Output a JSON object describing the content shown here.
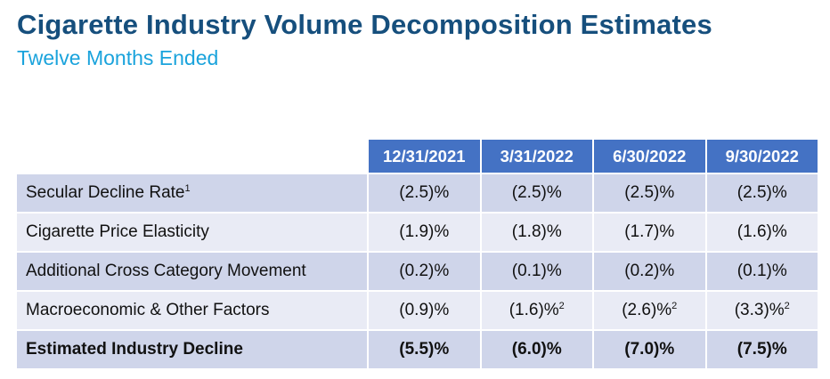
{
  "title": "Cigarette Industry Volume Decomposition Estimates",
  "subtitle": "Twelve Months Ended",
  "table": {
    "columns": [
      "12/31/2021",
      "3/31/2022",
      "6/30/2022",
      "9/30/2022"
    ],
    "rows": [
      {
        "label": "Secular Decline Rate",
        "label_footnote": "1",
        "values": [
          "(2.5)%",
          "(2.5)%",
          "(2.5)%",
          "(2.5)%"
        ],
        "footnotes": [
          "",
          "",
          "",
          ""
        ]
      },
      {
        "label": "Cigarette Price Elasticity",
        "label_footnote": "",
        "values": [
          "(1.9)%",
          "(1.8)%",
          "(1.7)%",
          "(1.6)%"
        ],
        "footnotes": [
          "",
          "",
          "",
          ""
        ]
      },
      {
        "label": "Additional Cross Category Movement",
        "label_footnote": "",
        "values": [
          "(0.2)%",
          "(0.1)%",
          "(0.2)%",
          "(0.1)%"
        ],
        "footnotes": [
          "",
          "",
          "",
          ""
        ]
      },
      {
        "label": "Macroeconomic & Other Factors",
        "label_footnote": "",
        "values": [
          "(0.9)%",
          "(1.6)%",
          "(2.6)%",
          "(3.3)%"
        ],
        "footnotes": [
          "",
          "2",
          "2",
          "2"
        ]
      }
    ],
    "total": {
      "label": "Estimated Industry Decline",
      "values": [
        "(5.5)%",
        "(6.0)%",
        "(7.0)%",
        "(7.5)%"
      ]
    }
  },
  "colors": {
    "title": "#164f7d",
    "subtitle": "#1aa3dc",
    "header_bg": "#4472c4",
    "row_dark": "#cfd5ea",
    "row_light": "#e9ebf5"
  }
}
